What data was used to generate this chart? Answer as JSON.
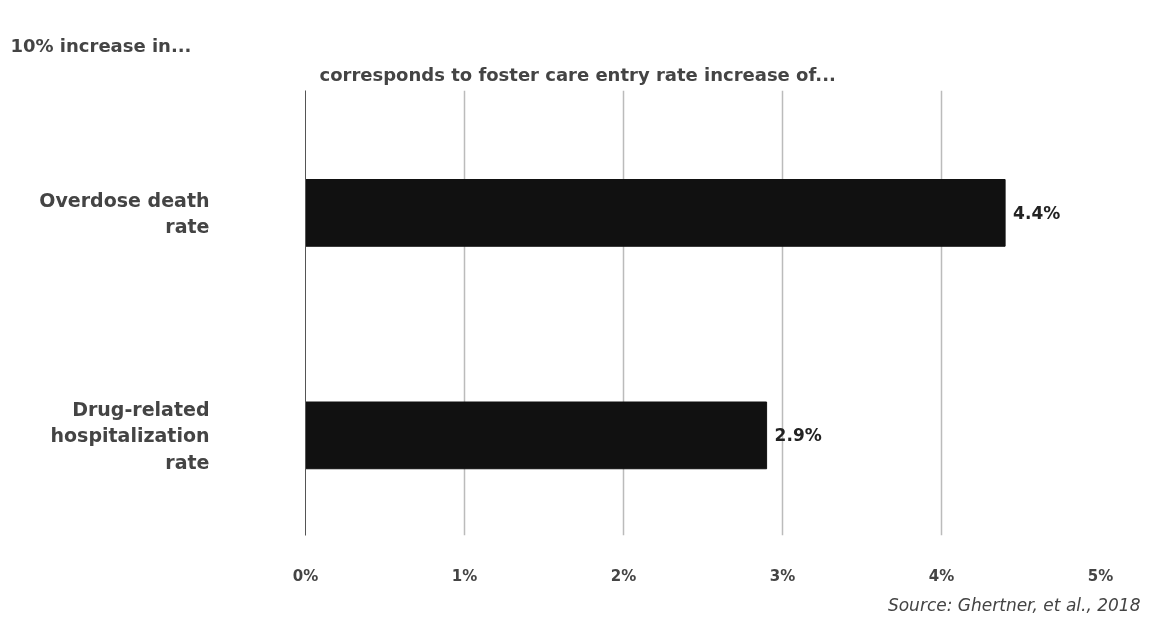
{
  "chart_data": {
    "type": "bar",
    "orientation": "horizontal",
    "title": "corresponds to foster care entry rate increase of...",
    "ylabel": "10% increase in...",
    "categories": [
      "Overdose death\nrate",
      "Drug-related\nhospitalization\nrate"
    ],
    "values": [
      4.4,
      2.9
    ],
    "color": "#111111",
    "value_labels": [
      "4.4%",
      "2.9%"
    ],
    "xlim": [
      0,
      5
    ],
    "xticks": [
      {
        "value": 0,
        "label": "0%"
      },
      {
        "value": 1,
        "label": "1%"
      },
      {
        "value": 2,
        "label": "2%"
      },
      {
        "value": 3,
        "label": "3%"
      },
      {
        "value": 4,
        "label": "4%"
      },
      {
        "value": 5,
        "label": "5%"
      }
    ],
    "grid": "x",
    "annotations": [
      "Source: Ghertner, et al., 2018"
    ]
  }
}
